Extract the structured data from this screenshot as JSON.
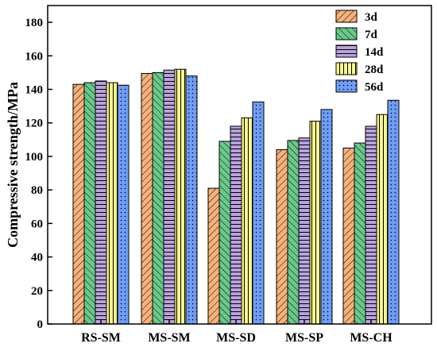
{
  "chart_data": {
    "type": "bar",
    "title": "",
    "xlabel": "",
    "ylabel": "Compressive strength/MPa",
    "ylim": [
      0,
      190
    ],
    "yticks": [
      0,
      20,
      40,
      60,
      80,
      100,
      120,
      140,
      160,
      180
    ],
    "grid": false,
    "legend_position": "top-right",
    "categories": [
      "RS-SM",
      "MS-SM",
      "MS-SD",
      "MS-SP",
      "MS-CH"
    ],
    "series": [
      {
        "name": "3d",
        "color": "#f7b27a",
        "pattern": "diagonal-hatch",
        "values": [
          143,
          149.5,
          81,
          104,
          105
        ]
      },
      {
        "name": "7d",
        "color": "#69c98a",
        "pattern": "backslash-hatch",
        "values": [
          144,
          150,
          109,
          109.5,
          108
        ]
      },
      {
        "name": "14d",
        "color": "#b9a2de",
        "pattern": "horizontal-lines",
        "values": [
          145,
          151.5,
          118,
          111,
          118
        ]
      },
      {
        "name": "28d",
        "color": "#f8f58e",
        "pattern": "vertical-lines",
        "values": [
          144,
          152,
          123,
          121,
          125
        ]
      },
      {
        "name": "56d",
        "color": "#6f9df7",
        "pattern": "dots",
        "values": [
          142.5,
          148,
          132.5,
          128,
          133.5
        ]
      }
    ]
  }
}
